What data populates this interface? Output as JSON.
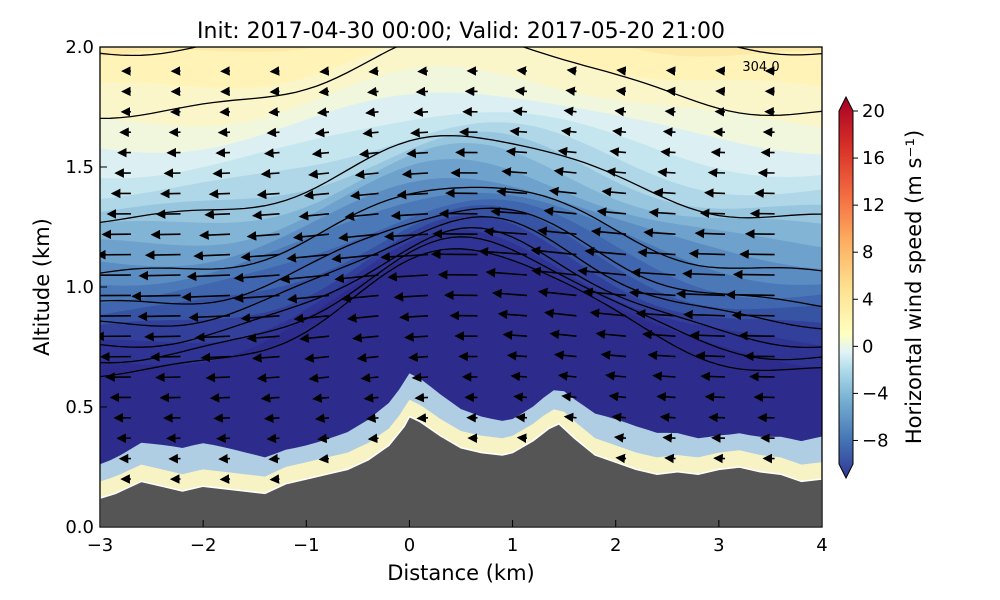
{
  "chart_data": {
    "type": "heatmap",
    "title": "Init: 2017-04-30 00:00; Valid: 2017-05-20 21:00",
    "xlabel": "Distance (km)",
    "ylabel": "Altitude (km)",
    "xlim": [
      -3,
      4
    ],
    "ylim": [
      0.0,
      2.0
    ],
    "x_ticks": [
      "−3",
      "−2",
      "−1",
      "0",
      "1",
      "2",
      "3",
      "4"
    ],
    "y_ticks": [
      "0.0",
      "0.5",
      "1.0",
      "1.5",
      "2.0"
    ],
    "colorbar": {
      "label": "Horizontal wind speed (m s⁻¹)",
      "range": [
        -10,
        20
      ],
      "ticks": [
        "−8",
        "−4",
        "0",
        "4",
        "8",
        "12",
        "16",
        "20"
      ],
      "colormap": "RdYlBu_r"
    },
    "contour_label": "304.0",
    "terrain": {
      "x": [
        -3.0,
        -2.85,
        -2.6,
        -2.4,
        -2.2,
        -2.0,
        -1.8,
        -1.6,
        -1.4,
        -1.2,
        -1.0,
        -0.8,
        -0.6,
        -0.4,
        -0.2,
        -0.05,
        0.0,
        0.1,
        0.3,
        0.5,
        0.7,
        0.9,
        1.0,
        1.2,
        1.35,
        1.45,
        1.6,
        1.8,
        2.0,
        2.2,
        2.4,
        2.6,
        2.8,
        3.0,
        3.2,
        3.4,
        3.6,
        3.8,
        4.0
      ],
      "y": [
        0.12,
        0.14,
        0.19,
        0.17,
        0.15,
        0.17,
        0.16,
        0.15,
        0.14,
        0.18,
        0.2,
        0.22,
        0.24,
        0.28,
        0.34,
        0.42,
        0.46,
        0.44,
        0.38,
        0.33,
        0.31,
        0.3,
        0.31,
        0.36,
        0.41,
        0.43,
        0.37,
        0.3,
        0.27,
        0.24,
        0.22,
        0.23,
        0.22,
        0.24,
        0.25,
        0.23,
        0.22,
        0.19,
        0.2
      ]
    },
    "wind_field_note": "easterly flow (negative speed), strongest core about -10 m/s near 0.7-1.0 km"
  }
}
